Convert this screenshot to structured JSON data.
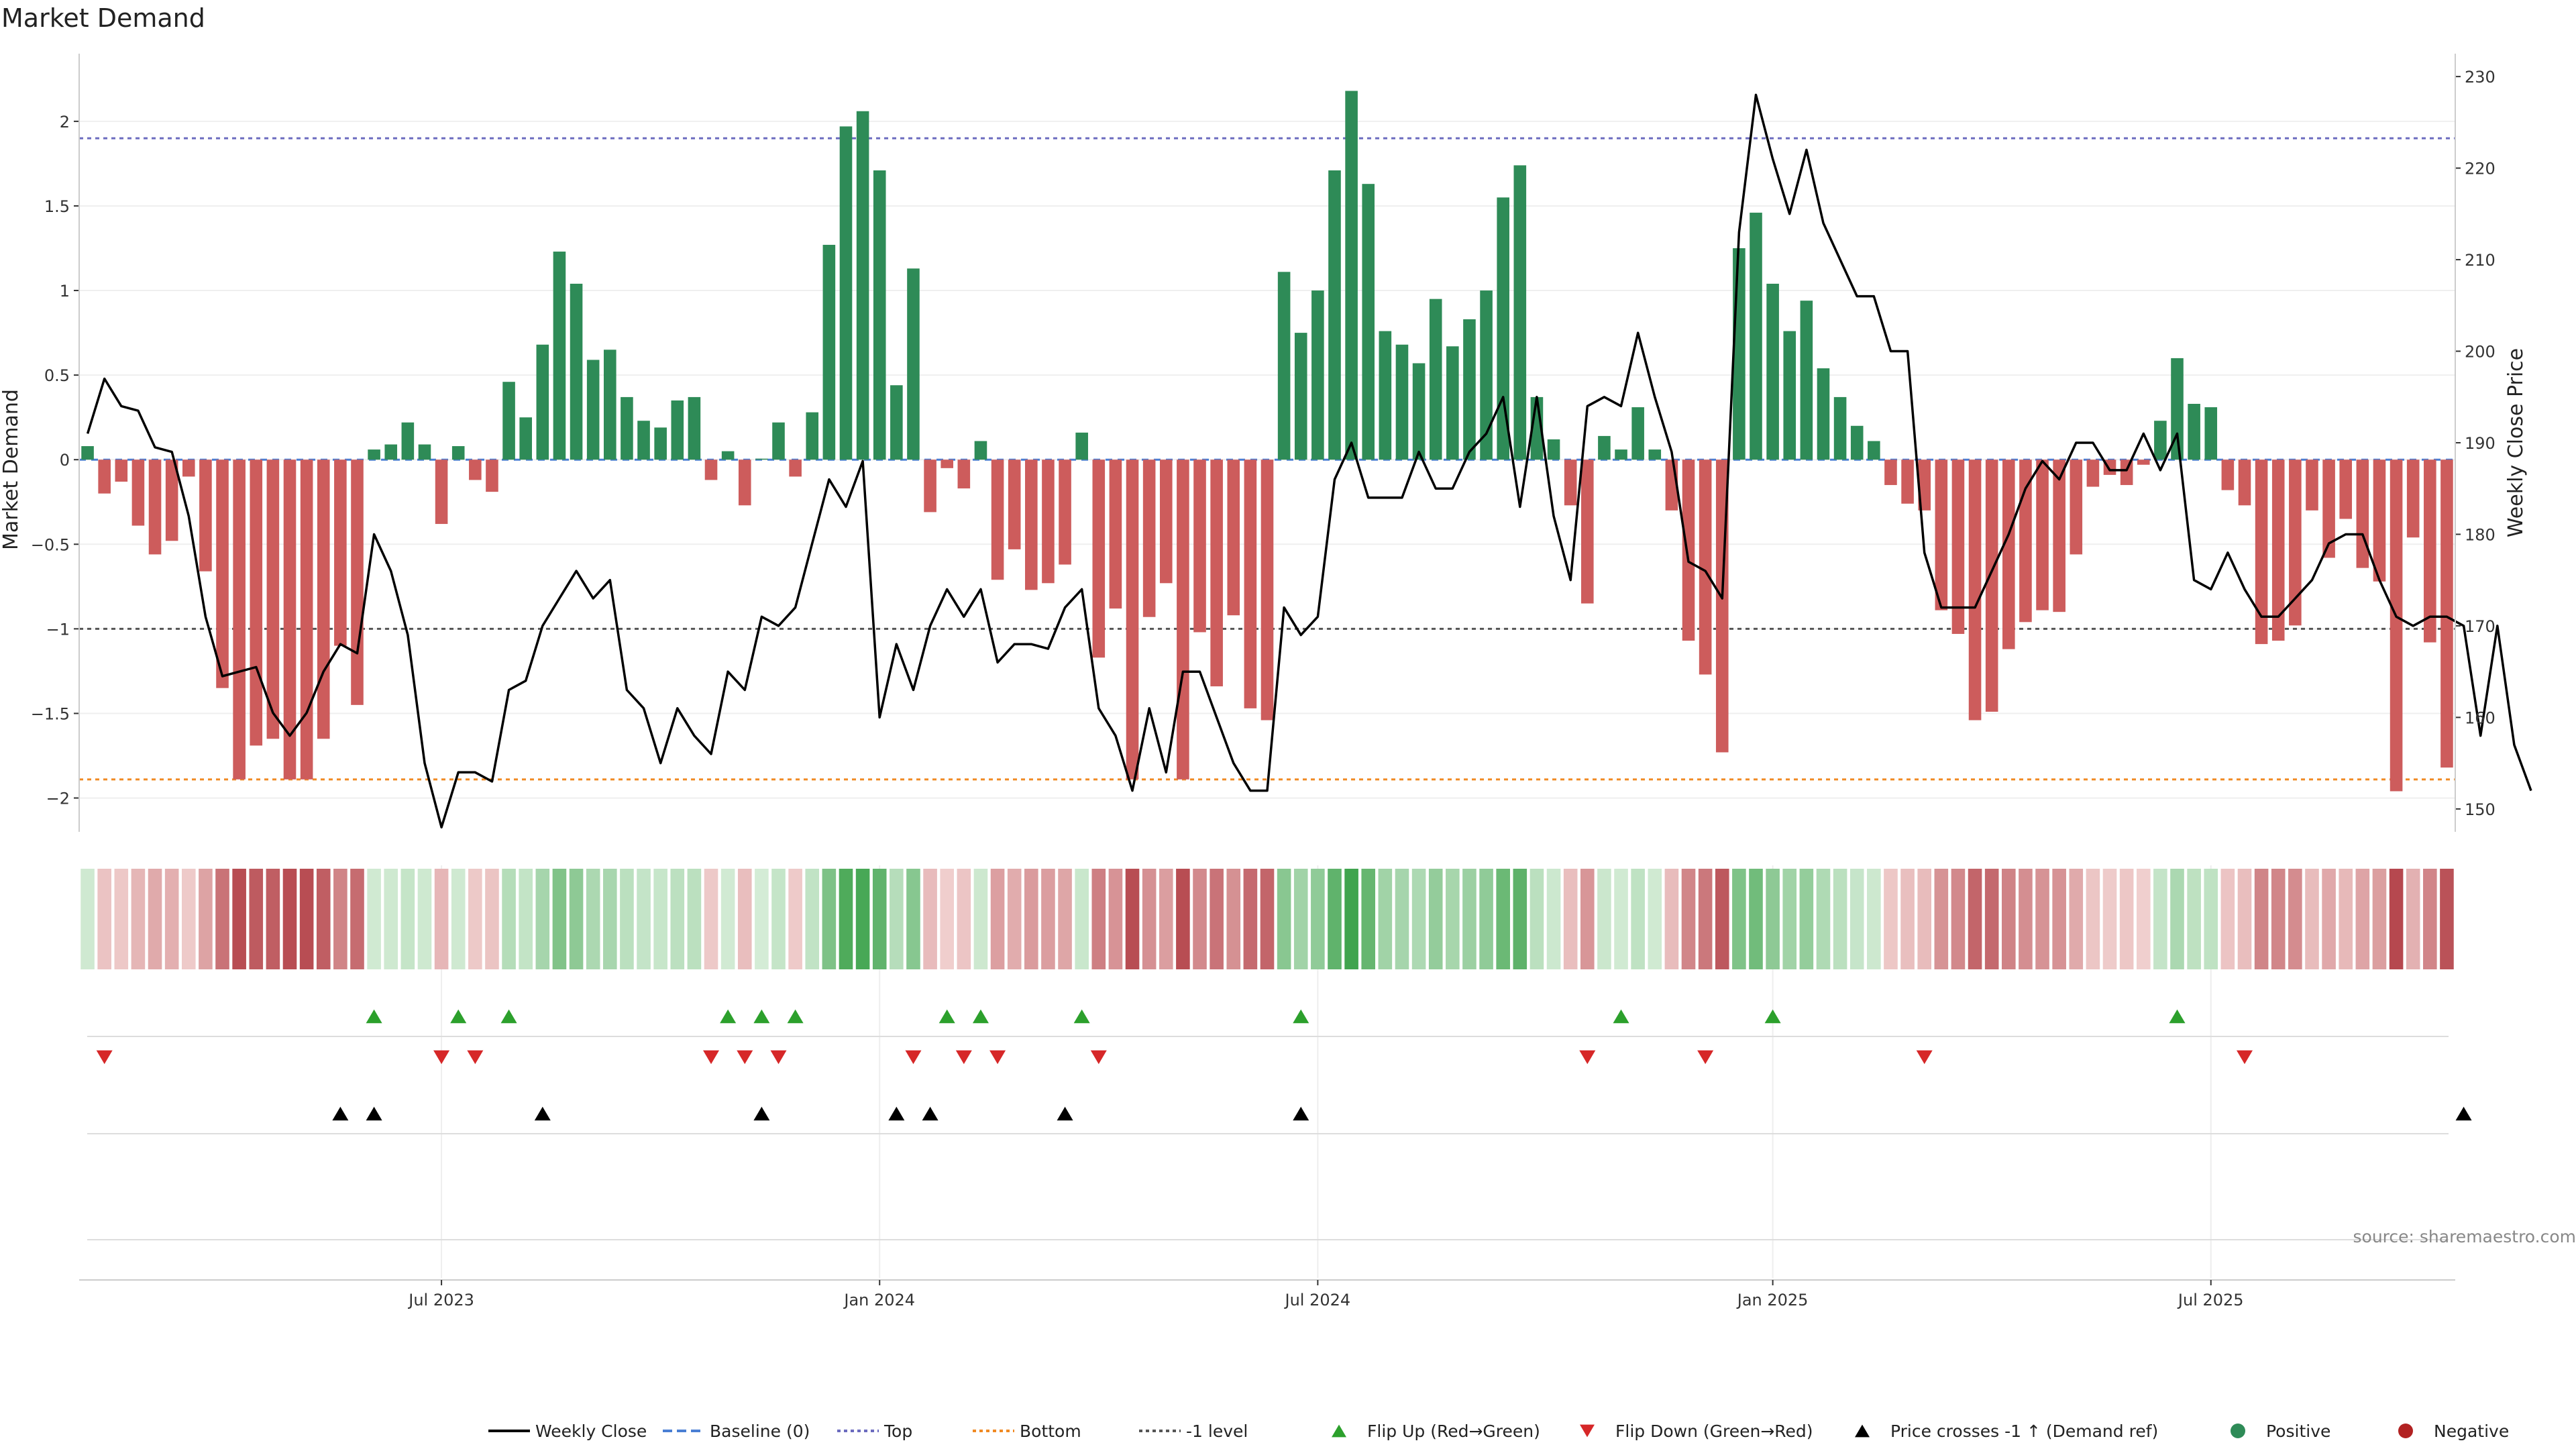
{
  "chart_data": {
    "type": "bar",
    "title": "Market Demand",
    "ylabel_left": "Market Demand",
    "ylabel_right": "Weekly Close Price",
    "ylim_left": [
      -2.2,
      2.4
    ],
    "ylim_right": [
      147.5,
      232.5
    ],
    "yticks_left": [
      {
        "value": -2,
        "label": "−2"
      },
      {
        "value": -1.5,
        "label": "−1.5"
      },
      {
        "value": -1,
        "label": "−1"
      },
      {
        "value": -0.5,
        "label": "−0.5"
      },
      {
        "value": 0,
        "label": "0"
      },
      {
        "value": 0.5,
        "label": "0.5"
      },
      {
        "value": 1,
        "label": "1"
      },
      {
        "value": 1.5,
        "label": "1.5"
      },
      {
        "value": 2,
        "label": "2"
      }
    ],
    "yticks_right": [
      {
        "value": 150,
        "label": "150"
      },
      {
        "value": 160,
        "label": "160"
      },
      {
        "value": 170,
        "label": "170"
      },
      {
        "value": 180,
        "label": "180"
      },
      {
        "value": 190,
        "label": "190"
      },
      {
        "value": 200,
        "label": "200"
      },
      {
        "value": 210,
        "label": "210"
      },
      {
        "value": 220,
        "label": "220"
      },
      {
        "value": 230,
        "label": "230"
      }
    ],
    "xticks": [
      {
        "index": 21,
        "label": "Jul 2023"
      },
      {
        "index": 47,
        "label": "Jan 2024"
      },
      {
        "index": 73,
        "label": "Jul 2024"
      },
      {
        "index": 100,
        "label": "Jan 2025"
      },
      {
        "index": 126,
        "label": "Jul 2025"
      }
    ],
    "reference_levels": {
      "top": 1.9,
      "bottom": -1.89,
      "minus_one": -1.0,
      "baseline": 0
    },
    "demand": [
      0.08,
      -0.2,
      -0.13,
      -0.39,
      -0.56,
      -0.48,
      -0.1,
      -0.66,
      -1.35,
      -1.89,
      -1.69,
      -1.65,
      -1.89,
      -1.89,
      -1.65,
      -1.1,
      -1.45,
      0.06,
      0.09,
      0.22,
      0.09,
      -0.38,
      0.08,
      -0.12,
      -0.19,
      0.46,
      0.25,
      0.68,
      1.23,
      1.04,
      0.59,
      0.65,
      0.37,
      0.23,
      0.19,
      0.35,
      0.37,
      -0.12,
      0.05,
      -0.27,
      0.0,
      0.22,
      -0.1,
      0.28,
      1.27,
      1.97,
      2.06,
      1.71,
      0.44,
      1.13,
      -0.31,
      -0.05,
      -0.17,
      0.11,
      -0.71,
      -0.53,
      -0.77,
      -0.73,
      -0.62,
      0.16,
      -1.17,
      -0.88,
      -1.89,
      -0.93,
      -0.73,
      -1.89,
      -1.02,
      -1.34,
      -0.92,
      -1.47,
      -1.54,
      1.11,
      0.75,
      1.0,
      1.71,
      2.18,
      1.63,
      0.76,
      0.68,
      0.57,
      0.95,
      0.67,
      0.83,
      1.0,
      1.55,
      1.74,
      0.37,
      0.12,
      -0.27,
      -0.85,
      0.14,
      0.06,
      0.31,
      0.06,
      -0.3,
      -1.07,
      -1.27,
      -1.73,
      1.25,
      1.46,
      1.04,
      0.76,
      0.94,
      0.54,
      0.37,
      0.2,
      0.11,
      -0.15,
      -0.26,
      -0.3,
      -0.89,
      -1.03,
      -1.54,
      -1.49,
      -1.12,
      -0.96,
      -0.89,
      -0.9,
      -0.56,
      -0.16,
      -0.09,
      -0.15,
      -0.03,
      0.23,
      0.6,
      0.33,
      0.31,
      -0.18,
      -0.27,
      -1.09,
      -1.07,
      -0.98,
      -0.3,
      -0.58,
      -0.35,
      -0.64,
      -0.72,
      -1.96,
      -0.46,
      -1.08,
      -1.82
    ],
    "close": [
      191,
      197,
      194,
      193.5,
      189.5,
      189,
      182,
      171,
      164.5,
      165,
      165.5,
      160.5,
      158,
      160.5,
      165,
      168,
      167,
      180,
      176,
      169,
      155,
      148,
      154,
      154,
      153,
      163,
      164,
      170,
      173,
      176,
      173,
      175,
      163,
      161,
      155,
      161,
      158,
      156,
      165,
      163,
      171,
      170,
      172,
      179,
      186,
      183,
      188,
      160,
      168,
      163,
      170,
      174,
      171,
      174,
      166,
      168,
      168,
      167.5,
      172,
      174,
      161,
      158,
      152,
      161,
      154,
      165,
      165,
      160,
      155,
      152,
      152,
      172,
      169,
      171,
      186,
      190,
      184,
      184,
      184,
      189,
      185,
      185,
      189,
      191,
      195,
      183,
      195,
      182,
      175,
      194,
      195,
      194,
      202,
      195,
      189,
      177,
      176,
      173,
      213,
      228,
      221,
      215,
      222,
      214,
      210,
      206,
      206,
      200,
      200,
      178,
      172,
      172,
      172,
      176,
      180,
      185,
      188,
      186,
      190,
      190,
      187,
      187,
      191,
      187,
      191,
      175,
      174,
      178,
      174,
      171,
      171,
      173,
      175,
      179,
      180,
      180,
      175,
      171,
      170,
      171,
      171,
      170,
      158,
      170,
      157,
      152
    ],
    "flip_up_idx": [
      17,
      22,
      25,
      38,
      40,
      42,
      51,
      53,
      59,
      72,
      91,
      100,
      124
    ],
    "flip_down_idx": [
      1,
      21,
      23,
      37,
      39,
      41,
      49,
      52,
      54,
      60,
      89,
      96,
      109,
      128
    ],
    "cross_up_idx": [
      15,
      17,
      27,
      40,
      48,
      50,
      58,
      72,
      141
    ],
    "legend": [
      {
        "label": "Weekly Close",
        "kind": "line-solid",
        "color": "#000000"
      },
      {
        "label": "Baseline (0)",
        "kind": "line-dashed",
        "color": "#4a7fd4"
      },
      {
        "label": "Top",
        "kind": "line-dotted",
        "color": "#6b6bbf"
      },
      {
        "label": "Bottom",
        "kind": "line-dotted",
        "color": "#f08a24"
      },
      {
        "label": "-1 level",
        "kind": "line-dotted",
        "color": "#555555"
      },
      {
        "label": "Flip Up (Red→Green)",
        "kind": "triangle-up",
        "color": "#2ca02c"
      },
      {
        "label": "Flip Down (Green→Red)",
        "kind": "triangle-down",
        "color": "#d62728"
      },
      {
        "label": "Price crosses -1 ↑ (Demand ref)",
        "kind": "triangle-up",
        "color": "#000000"
      },
      {
        "label": "Positive",
        "kind": "dot",
        "color": "#2e8b57"
      },
      {
        "label": "Negative",
        "kind": "dot",
        "color": "#b22222"
      }
    ],
    "colors": {
      "positive_bar": "#2e8b57",
      "negative_bar": "#cd5c5c",
      "close_line": "#000000",
      "flip_up": "#2ca02c",
      "flip_down": "#d62728",
      "cross_up": "#000000"
    },
    "source": "source: sharemaestro.com"
  }
}
